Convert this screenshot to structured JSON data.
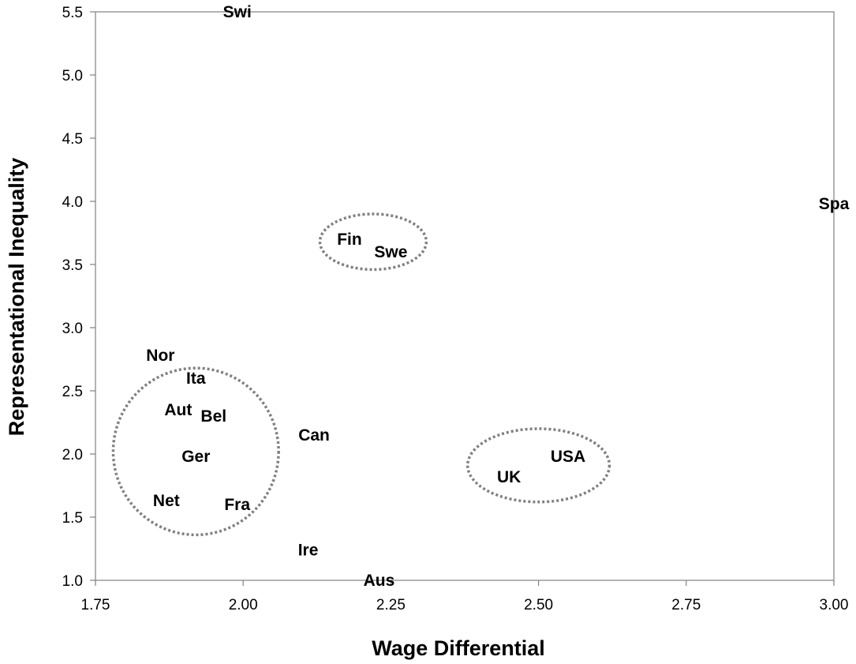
{
  "chart_data": {
    "type": "scatter",
    "title": "",
    "xlabel": "Wage Differential",
    "ylabel": "Representational Inequality",
    "xlim": [
      1.75,
      3.0
    ],
    "ylim": [
      1.0,
      5.5
    ],
    "xticks": [
      "1.75",
      "2.00",
      "2.25",
      "2.50",
      "2.75",
      "3.00"
    ],
    "yticks": [
      "1.0",
      "1.5",
      "2.0",
      "2.5",
      "3.0",
      "3.5",
      "4.0",
      "4.5",
      "5.0",
      "5.5"
    ],
    "grid": false,
    "points": [
      {
        "label": "Swi",
        "x": 1.99,
        "y": 5.5
      },
      {
        "label": "Spa",
        "x": 3.0,
        "y": 3.98
      },
      {
        "label": "Fin",
        "x": 2.18,
        "y": 3.7
      },
      {
        "label": "Swe",
        "x": 2.25,
        "y": 3.6
      },
      {
        "label": "Nor",
        "x": 1.86,
        "y": 2.78
      },
      {
        "label": "Ita",
        "x": 1.92,
        "y": 2.6
      },
      {
        "label": "Aut",
        "x": 1.89,
        "y": 2.35
      },
      {
        "label": "Bel",
        "x": 1.95,
        "y": 2.3
      },
      {
        "label": "Can",
        "x": 2.12,
        "y": 2.15
      },
      {
        "label": "Ger",
        "x": 1.92,
        "y": 1.98
      },
      {
        "label": "USA",
        "x": 2.55,
        "y": 1.98
      },
      {
        "label": "UK",
        "x": 2.45,
        "y": 1.82
      },
      {
        "label": "Net",
        "x": 1.87,
        "y": 1.63
      },
      {
        "label": "Fra",
        "x": 1.99,
        "y": 1.6
      },
      {
        "label": "Ire",
        "x": 2.11,
        "y": 1.24
      },
      {
        "label": "Aus",
        "x": 2.23,
        "y": 1.0
      }
    ],
    "clusters": [
      {
        "members": [
          "Nor",
          "Ita",
          "Aut",
          "Bel",
          "Ger",
          "Net",
          "Fra"
        ],
        "cx": 1.92,
        "cy": 2.02,
        "rx": 0.14,
        "ry": 0.66
      },
      {
        "members": [
          "Fin",
          "Swe"
        ],
        "cx": 2.22,
        "cy": 3.68,
        "rx": 0.09,
        "ry": 0.22
      },
      {
        "members": [
          "UK",
          "USA"
        ],
        "cx": 2.5,
        "cy": 1.91,
        "rx": 0.12,
        "ry": 0.29
      }
    ]
  },
  "colors": {
    "axis": "#808080",
    "text": "#000000",
    "cluster_outline": "#808080"
  }
}
